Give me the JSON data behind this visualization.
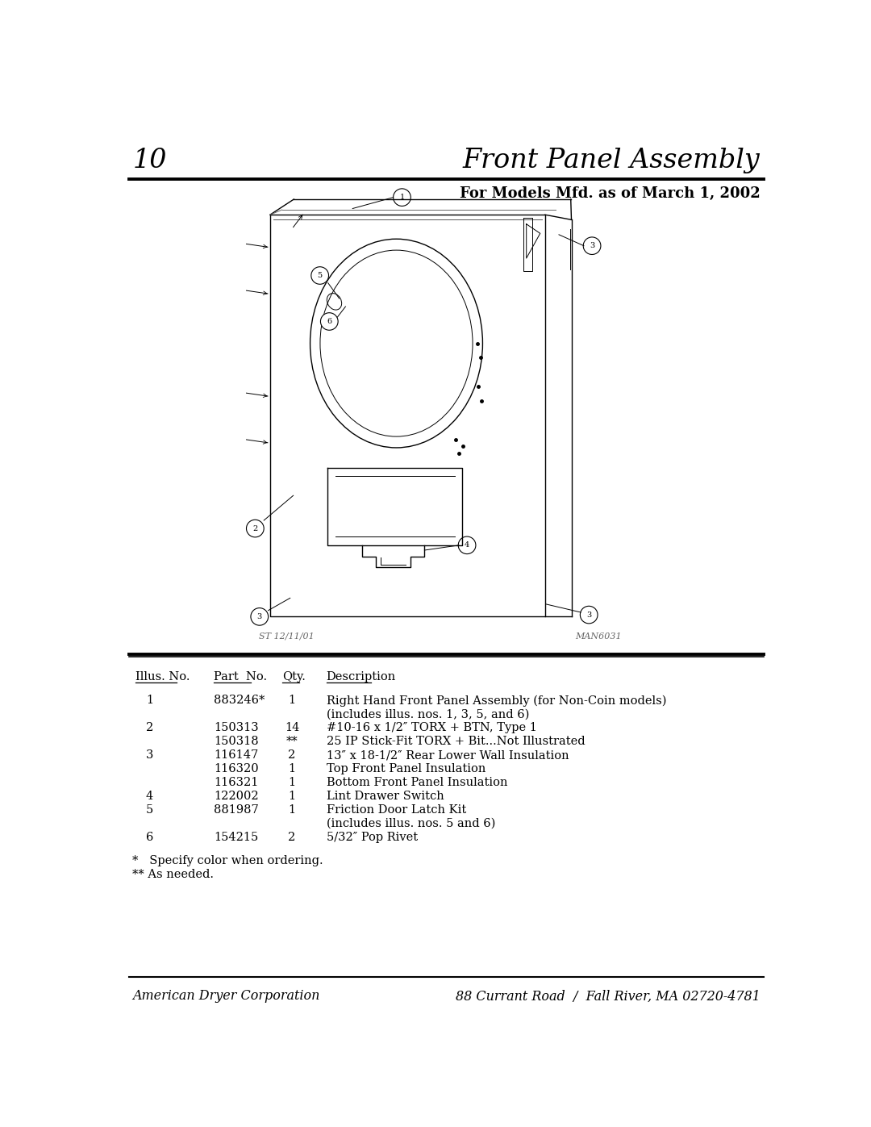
{
  "page_number": "10",
  "title": "Front Panel Assembly",
  "subtitle": "For Models Mfd. as of March 1, 2002",
  "drawing_caption_left": "ST 12/11/01",
  "drawing_caption_right": "MAN6031",
  "table_headers": [
    "Illus. No.",
    "Part  No.",
    "Qty.",
    "Description"
  ],
  "table_rows": [
    {
      "illus": "1",
      "part": "883246*",
      "qty": "1",
      "desc": "Right Hand Front Panel Assembly (for Non-Coin models)",
      "desc2": "(includes illus. nos. 1, 3, 5, and 6)"
    },
    {
      "illus": "2",
      "part": "150313",
      "qty": "14",
      "desc": "#10-16 x 1/2″ TORX + BTN, Type 1",
      "desc2": ""
    },
    {
      "illus": "",
      "part": "150318",
      "qty": "**",
      "desc": "25 IP Stick-Fit TORX + Bit...Not Illustrated",
      "desc2": ""
    },
    {
      "illus": "3",
      "part": "116147",
      "qty": "2",
      "desc": "13″ x 18-1/2″ Rear Lower Wall Insulation",
      "desc2": ""
    },
    {
      "illus": "",
      "part": "116320",
      "qty": "1",
      "desc": "Top Front Panel Insulation",
      "desc2": ""
    },
    {
      "illus": "",
      "part": "116321",
      "qty": "1",
      "desc": "Bottom Front Panel Insulation",
      "desc2": ""
    },
    {
      "illus": "4",
      "part": "122002",
      "qty": "1",
      "desc": "Lint Drawer Switch",
      "desc2": ""
    },
    {
      "illus": "5",
      "part": "881987",
      "qty": "1",
      "desc": "Friction Door Latch Kit",
      "desc2": "(includes illus. nos. 5 and 6)"
    },
    {
      "illus": "6",
      "part": "154215",
      "qty": "2",
      "desc": "5/32″ Pop Rivet",
      "desc2": ""
    }
  ],
  "footnotes": [
    "*   Specify color when ordering.",
    "** As needed."
  ],
  "footer_left": "American Dryer Corporation",
  "footer_right": "88 Currant Road  /  Fall River, MA 02720-4781",
  "bg_color": "#ffffff",
  "text_color": "#000000"
}
